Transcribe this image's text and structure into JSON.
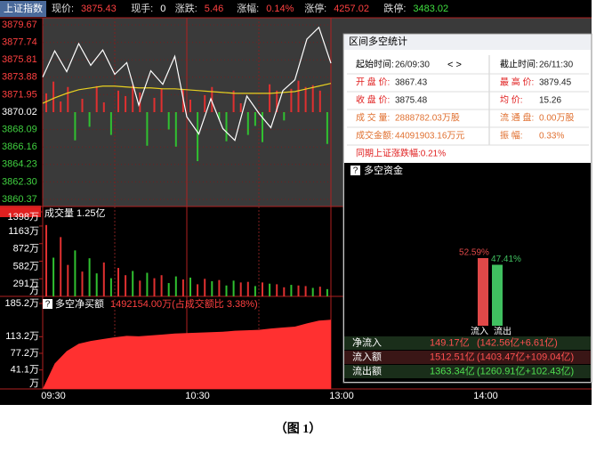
{
  "header": {
    "name": "上证指数",
    "fields": [
      {
        "label": "现价:",
        "value": "3875.43",
        "color": "#ff4040"
      },
      {
        "label": "现手:",
        "value": "0",
        "color": "#ffffff"
      },
      {
        "label": "涨跌:",
        "value": "5.46",
        "color": "#ff4040"
      },
      {
        "label": "涨幅:",
        "value": "0.14%",
        "color": "#ff4040"
      },
      {
        "label": "涨停:",
        "value": "4257.02",
        "color": "#ff4040"
      },
      {
        "label": "跌停:",
        "value": "3483.02",
        "color": "#40e040"
      }
    ]
  },
  "price_chart": {
    "ylim": [
      3860.37,
      3879.67
    ],
    "yticks": [
      3879.67,
      3877.74,
      3875.81,
      3873.88,
      3871.95,
      3870.02,
      3868.09,
      3866.16,
      3864.23,
      {
        "value": 3862.3,
        "label": "3862.30"
      },
      3860.37
    ],
    "price": [
      3873.9,
      3876.8,
      3874.5,
      3877.6,
      3875.2,
      3876.9,
      3874.2,
      3875.5,
      3870.8,
      3874.6,
      3873.1,
      3876.2,
      3869.5,
      3867.6,
      3871.5,
      3868.2,
      3866.9,
      3871.8,
      3869.9,
      3868.3,
      3872.4,
      3873.6,
      3878.1,
      3879.4,
      3875.43
    ],
    "average": [
      3871.0,
      3871.6,
      3872.1,
      3872.5,
      3872.7,
      3872.9,
      3872.9,
      3872.8,
      3872.7,
      3872.7,
      3872.6,
      3872.6,
      3872.5,
      3872.4,
      3872.3,
      3872.2,
      3872.1,
      3872.1,
      3872.1,
      3872.1,
      3872.2,
      3872.3,
      3872.6,
      3872.9,
      3873.2
    ],
    "strength": [
      3872.1,
      3873.4,
      3871.2,
      3872.8,
      3866.9,
      3871.5,
      3868.4,
      3872.9,
      3871.1,
      3867.5,
      3872.4,
      3871.8,
      3873.0,
      3872.2,
      3866.3,
      3871.6,
      3872.6,
      3868.1,
      3866.2,
      3872.5,
      3871.4,
      3864.6,
      3871.9,
      3872.8,
      3869.2,
      3866.8,
      3872.4,
      3871.0,
      3867.5,
      3868.5,
      3866.7,
      3873.1,
      3872.4,
      3869.1,
      3872.6,
      3873.5,
      3872.8,
      3873.0,
      3872.4,
      3866.5
    ],
    "price_color": "#ffffff",
    "average_color": "#e8d020",
    "up_color": "#e03030",
    "down_color": "#30c030"
  },
  "volume_chart": {
    "title": "成交量 1.25亿",
    "ylim": [
      0,
      1398
    ],
    "yticks": [
      {
        "value": 1398,
        "label": "1398万"
      },
      {
        "value": 1163,
        "label": "1163万"
      },
      {
        "value": 872,
        "label": "872万"
      },
      {
        "value": 582,
        "label": "582万"
      },
      {
        "value": 291,
        "label": "291万"
      },
      {
        "value": 0,
        "label": "万"
      }
    ],
    "values": [
      1180,
      640,
      980,
      520,
      760,
      410,
      630,
      380,
      560,
      300,
      470,
      350,
      420,
      260,
      390,
      300,
      350,
      220,
      330,
      280,
      310,
      200,
      290,
      250,
      270,
      180,
      260,
      230,
      240,
      170,
      230,
      210,
      200,
      150,
      190,
      180,
      170,
      140,
      160,
      120
    ],
    "direction": [
      1,
      -1,
      1,
      1,
      -1,
      1,
      -1,
      -1,
      1,
      -1,
      1,
      1,
      -1,
      1,
      -1,
      1,
      1,
      -1,
      -1,
      1,
      -1,
      1,
      1,
      -1,
      1,
      -1,
      -1,
      1,
      1,
      -1,
      1,
      -1,
      1,
      1,
      -1,
      1,
      1,
      -1,
      1,
      -1
    ]
  },
  "net_chart": {
    "title": "多空净买额",
    "note": "1492154.00万(占成交额比 3.38%)",
    "ylim": [
      0,
      185.2
    ],
    "yticks": [
      {
        "value": 185.2,
        "label": "185.2万"
      },
      {
        "value": 113.2,
        "label": "113.2万"
      },
      {
        "value": 77.2,
        "label": "77.2万"
      },
      {
        "value": 41.1,
        "label": "41.1万"
      },
      {
        "value": 0,
        "label": "万"
      }
    ],
    "values": [
      0,
      55,
      82,
      98,
      104,
      108,
      112,
      115,
      114,
      116,
      118,
      120,
      121,
      122,
      123,
      124,
      126,
      127,
      128,
      131,
      133,
      135,
      142,
      148,
      150
    ],
    "color": "#ff3030"
  },
  "time_axis": [
    "09:30",
    "10:30",
    "13:00",
    "14:00"
  ],
  "stats": {
    "title": "区间多空统计",
    "nav": "< >",
    "rows": [
      [
        [
          "起始时间:",
          "26/09:30"
        ],
        [
          "截止时间:",
          "26/11:30"
        ]
      ],
      [
        [
          "开 盘 价:",
          "3867.43"
        ],
        [
          "最 高 价:",
          "3879.45"
        ]
      ],
      [
        [
          "收 盘 价:",
          "3875.48"
        ],
        [
          "均    价:",
          "15.26"
        ]
      ],
      [
        [
          "成 交 量:",
          "2888782.03万股"
        ],
        [
          "流 通 盘:",
          "0.00万股"
        ]
      ],
      [
        [
          "成交金额:",
          "44091903.16万元"
        ],
        [
          "振    幅:",
          "0.33%"
        ]
      ]
    ],
    "change": "同期上证涨跌幅:0.21%"
  },
  "fund_flow": {
    "title": "多空资金",
    "categories": [
      "流入",
      "流出"
    ],
    "values": [
      52.59,
      47.41
    ],
    "value_labels": [
      "52.59%",
      "47.41%"
    ],
    "colors": [
      "#e04848",
      "#40c060"
    ],
    "table": [
      [
        "净流入",
        "149.17亿",
        "(142.56亿+6.61亿)"
      ],
      [
        "流入额",
        "1512.51亿",
        "(1403.47亿+109.04亿)"
      ],
      [
        "流出额",
        "1363.34亿",
        "(1260.91亿+102.43亿)"
      ]
    ]
  },
  "caption": "（图 1）"
}
